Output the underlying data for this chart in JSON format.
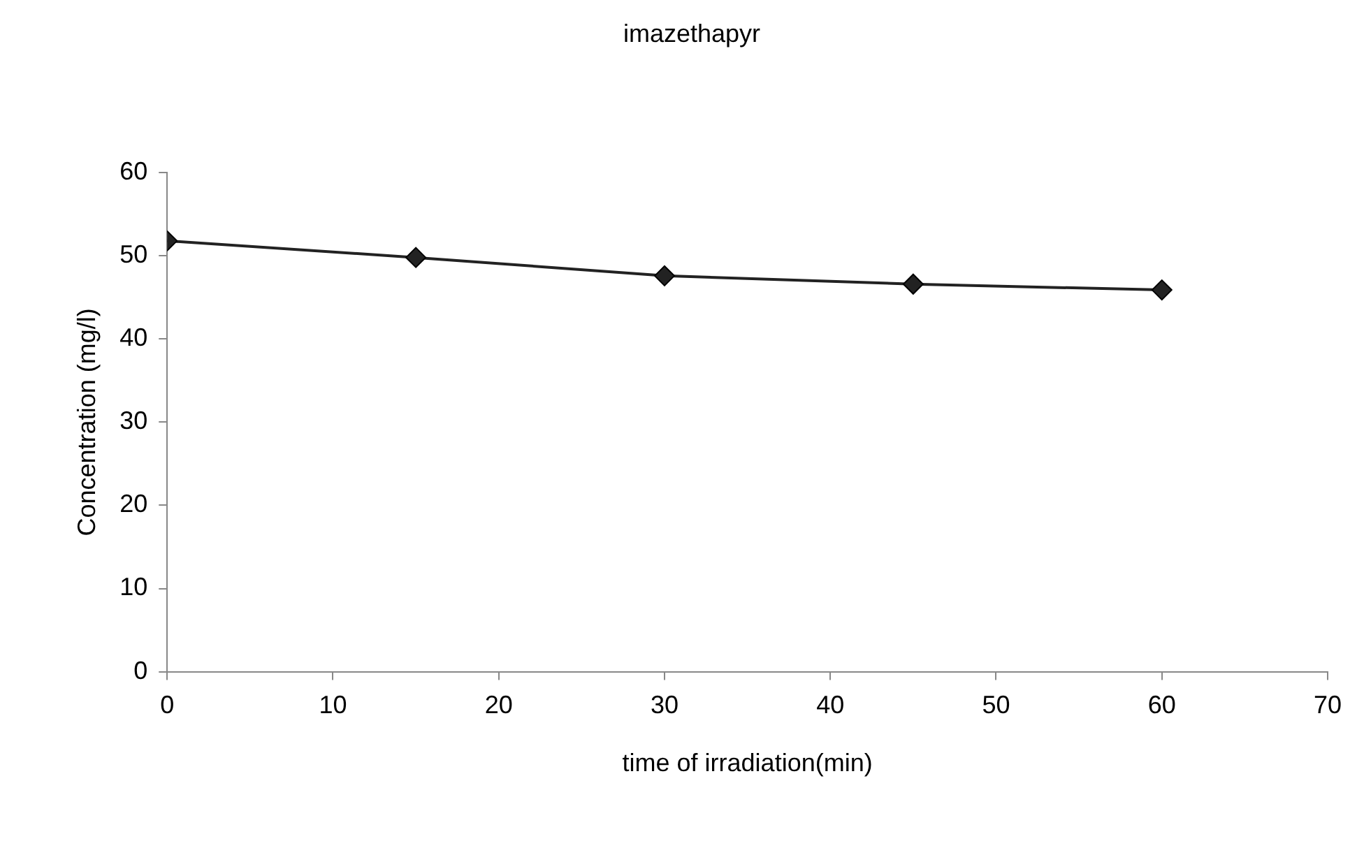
{
  "chart_data": {
    "type": "line",
    "title": "imazethapyr",
    "xlabel": "time of irradiation(min)",
    "ylabel": "Concentration (mg/l)",
    "x": [
      0,
      15,
      30,
      45,
      60
    ],
    "series": [
      {
        "color": "#222222",
        "values": [
          51.8,
          49.8,
          47.6,
          46.6,
          45.9
        ]
      }
    ],
    "xlim": [
      0,
      70
    ],
    "xticks": [
      0,
      10,
      20,
      30,
      40,
      50,
      60,
      70
    ],
    "ylim": [
      0,
      60
    ],
    "yticks": [
      0,
      10,
      20,
      30,
      40,
      50,
      60
    ],
    "grid": false,
    "legend": false,
    "marker": "diamond",
    "line_style": "solid"
  }
}
